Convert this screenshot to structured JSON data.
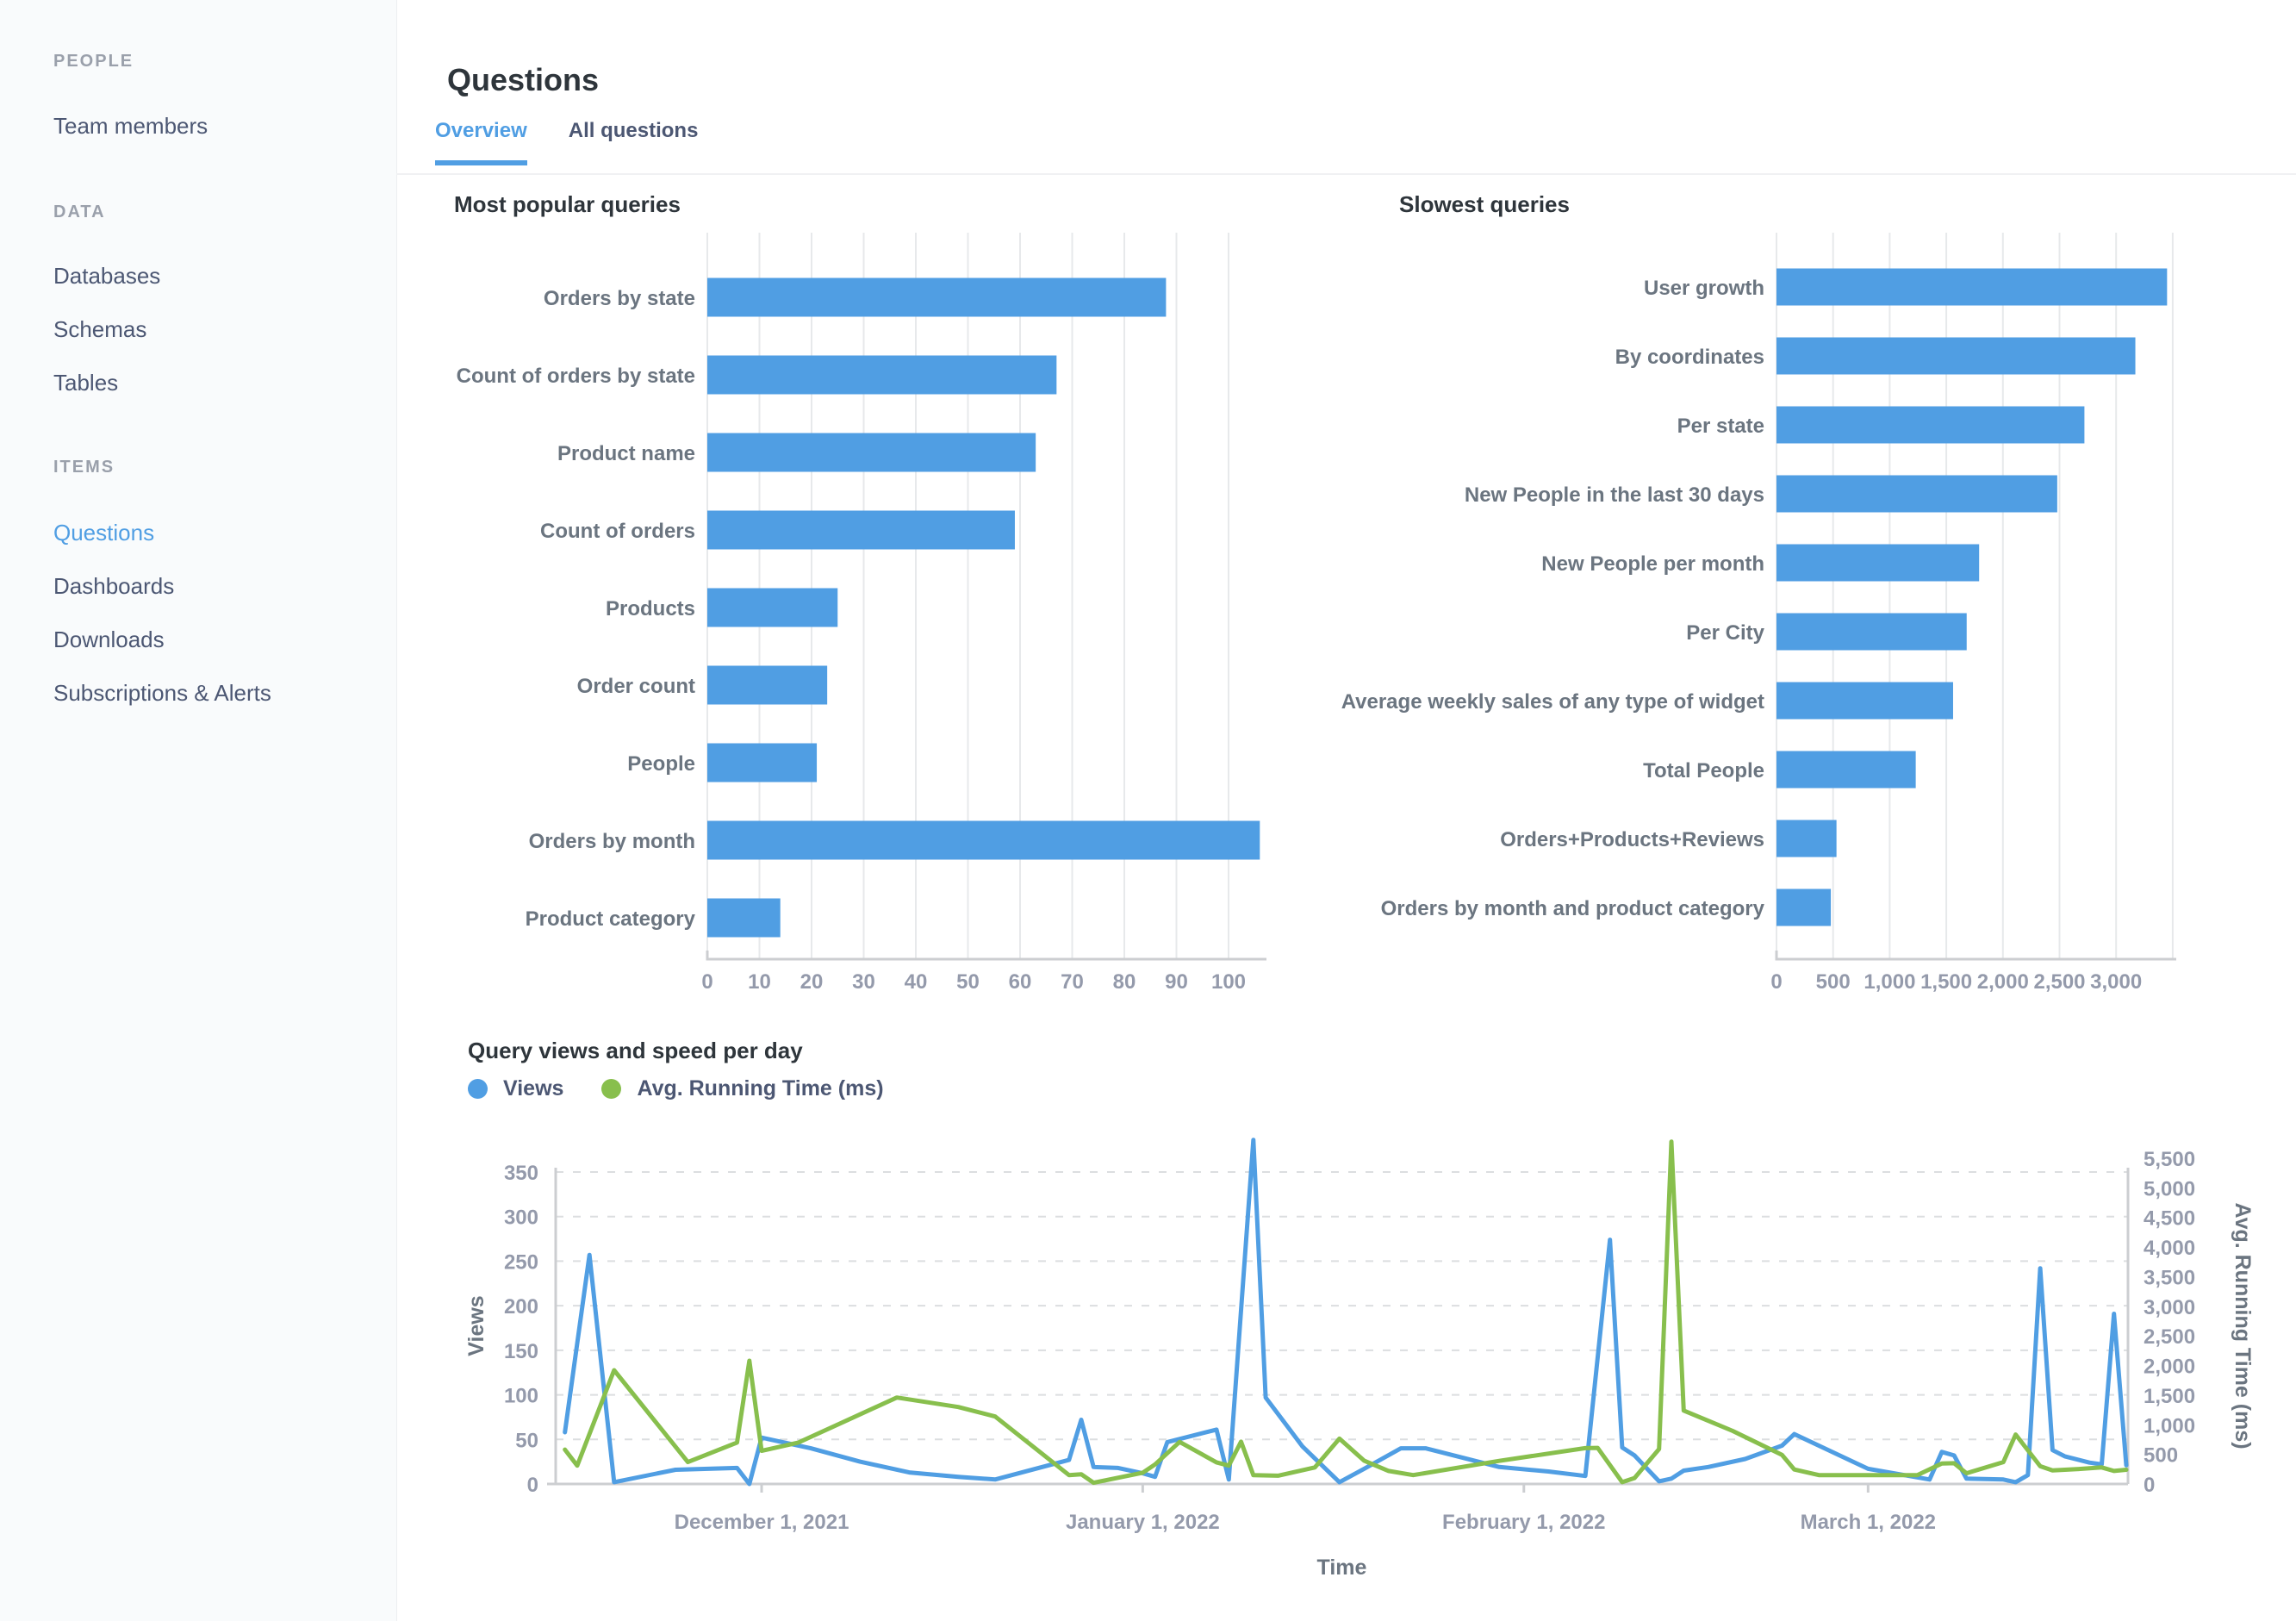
{
  "sidebar": {
    "sections": [
      {
        "header": "PEOPLE",
        "items": [
          {
            "label": "Team members",
            "active": false
          }
        ]
      },
      {
        "header": "DATA",
        "items": [
          {
            "label": "Databases",
            "active": false
          },
          {
            "label": "Schemas",
            "active": false
          },
          {
            "label": "Tables",
            "active": false
          }
        ]
      },
      {
        "header": "ITEMS",
        "items": [
          {
            "label": "Questions",
            "active": true
          },
          {
            "label": "Dashboards",
            "active": false
          },
          {
            "label": "Downloads",
            "active": false
          },
          {
            "label": "Subscriptions & Alerts",
            "active": false
          }
        ]
      }
    ]
  },
  "header": {
    "title": "Questions",
    "tabs": [
      {
        "label": "Overview",
        "active": true
      },
      {
        "label": "All questions",
        "active": false
      }
    ]
  },
  "colors": {
    "accent": "#509ee3",
    "green": "#88bf4d",
    "text_dark": "#2e353b",
    "text_medium": "#4c5773",
    "text_light": "#949aab"
  },
  "chart_data": [
    {
      "type": "bar",
      "orientation": "horizontal",
      "title": "Most popular queries",
      "categories": [
        "Orders by state",
        "Count of orders by state",
        "Product name",
        "Count of orders",
        "Products",
        "Order count",
        "People",
        "Orders by month",
        "Product category"
      ],
      "values": [
        88,
        67,
        63,
        59,
        25,
        23,
        21,
        106,
        14
      ],
      "xlabel": "",
      "ylabel": "",
      "xlim": [
        0,
        105
      ],
      "xticks": [
        0,
        10,
        20,
        30,
        40,
        50,
        60,
        70,
        80,
        90,
        100
      ],
      "grid": true,
      "bar_color": "#509ee3"
    },
    {
      "type": "bar",
      "orientation": "horizontal",
      "title": "Slowest queries",
      "categories": [
        "User growth",
        "By coordinates",
        "Per state",
        "New People in the last 30 days",
        "New People per month",
        "Per City",
        "Average weekly sales of any type of widget",
        "Total People",
        "Orders+Products+Reviews",
        "Orders by month and product category"
      ],
      "values": [
        3450,
        3170,
        2720,
        2480,
        1790,
        1680,
        1560,
        1230,
        530,
        480
      ],
      "xlabel": "",
      "ylabel": "",
      "xlim": [
        0,
        3500
      ],
      "xticks": [
        0,
        500,
        1000,
        1500,
        2000,
        2500,
        3000
      ],
      "grid_ticks": [
        0,
        500,
        1000,
        1500,
        2000,
        2500,
        3000,
        3500
      ],
      "grid": true,
      "bar_color": "#509ee3"
    },
    {
      "type": "line",
      "title": "Query views and speed per day",
      "xlabel": "Time",
      "legend_position": "top-left",
      "grid": "dashed-horizontal",
      "x_axis": {
        "unit": "day-index",
        "ticks": [
          {
            "day": 16,
            "label": "December 1, 2021"
          },
          {
            "day": 47,
            "label": "January 1, 2022"
          },
          {
            "day": 78,
            "label": "February 1, 2022"
          },
          {
            "day": 106,
            "label": "March 1, 2022"
          }
        ]
      },
      "left_axis": {
        "label": "Views",
        "min": 0,
        "max": 350,
        "step": 50
      },
      "right_axis": {
        "label": "Avg. Running Time (ms)",
        "min": 0,
        "max": 5500,
        "step": 500
      },
      "series": [
        {
          "name": "Views",
          "axis": "left",
          "color": "#509ee3",
          "points": [
            [
              0,
              58
            ],
            [
              2,
              257
            ],
            [
              4,
              2
            ],
            [
              9,
              16
            ],
            [
              14,
              18
            ],
            [
              15,
              0
            ],
            [
              16,
              52
            ],
            [
              20,
              40
            ],
            [
              24,
              25
            ],
            [
              28,
              13
            ],
            [
              32,
              8
            ],
            [
              35,
              5
            ],
            [
              41,
              27
            ],
            [
              42,
              72
            ],
            [
              43,
              19
            ],
            [
              45,
              18
            ],
            [
              47,
              12
            ],
            [
              48,
              8
            ],
            [
              49,
              47
            ],
            [
              53,
              61
            ],
            [
              54,
              5
            ],
            [
              56,
              386
            ],
            [
              57,
              97
            ],
            [
              60,
              42
            ],
            [
              63,
              2
            ],
            [
              65,
              17
            ],
            [
              68,
              40
            ],
            [
              70,
              40
            ],
            [
              76,
              19
            ],
            [
              80,
              14
            ],
            [
              83,
              9
            ],
            [
              85,
              274
            ],
            [
              86,
              41
            ],
            [
              87,
              32
            ],
            [
              89,
              3
            ],
            [
              90,
              6
            ],
            [
              91,
              15
            ],
            [
              93,
              19
            ],
            [
              96,
              28
            ],
            [
              99,
              43
            ],
            [
              100,
              56
            ],
            [
              106,
              17
            ],
            [
              111,
              5
            ],
            [
              112,
              36
            ],
            [
              113,
              32
            ],
            [
              114,
              6
            ],
            [
              117,
              5
            ],
            [
              118,
              2
            ],
            [
              119,
              10
            ],
            [
              120,
              242
            ],
            [
              121,
              38
            ],
            [
              122,
              31
            ],
            [
              124,
              24
            ],
            [
              125,
              22
            ],
            [
              126,
              191
            ],
            [
              127,
              21
            ]
          ]
        },
        {
          "name": "Avg. Running Time (ms)",
          "axis": "right",
          "color": "#88bf4d",
          "points": [
            [
              0,
              580
            ],
            [
              1,
              310
            ],
            [
              4,
              1920
            ],
            [
              10,
              370
            ],
            [
              14,
              700
            ],
            [
              15,
              2080
            ],
            [
              16,
              560
            ],
            [
              19,
              700
            ],
            [
              27,
              1460
            ],
            [
              32,
              1300
            ],
            [
              35,
              1140
            ],
            [
              41,
              150
            ],
            [
              42,
              165
            ],
            [
              43,
              20
            ],
            [
              47,
              190
            ],
            [
              48,
              330
            ],
            [
              50,
              710
            ],
            [
              53,
              365
            ],
            [
              54,
              310
            ],
            [
              55,
              715
            ],
            [
              56,
              150
            ],
            [
              58,
              140
            ],
            [
              61,
              280
            ],
            [
              63,
              765
            ],
            [
              65,
              395
            ],
            [
              67,
              220
            ],
            [
              69,
              150
            ],
            [
              76,
              390
            ],
            [
              83,
              605
            ],
            [
              84,
              610
            ],
            [
              86,
              30
            ],
            [
              87,
              100
            ],
            [
              89,
              590
            ],
            [
              90,
              5780
            ],
            [
              91,
              1240
            ],
            [
              95,
              895
            ],
            [
              99,
              490
            ],
            [
              100,
              245
            ],
            [
              102,
              150
            ],
            [
              110,
              150
            ],
            [
              112,
              345
            ],
            [
              113,
              350
            ],
            [
              114,
              180
            ],
            [
              117,
              370
            ],
            [
              118,
              835
            ],
            [
              120,
              300
            ],
            [
              121,
              230
            ],
            [
              123,
              250
            ],
            [
              125,
              280
            ],
            [
              126,
              220
            ],
            [
              127,
              240
            ]
          ]
        }
      ]
    }
  ]
}
